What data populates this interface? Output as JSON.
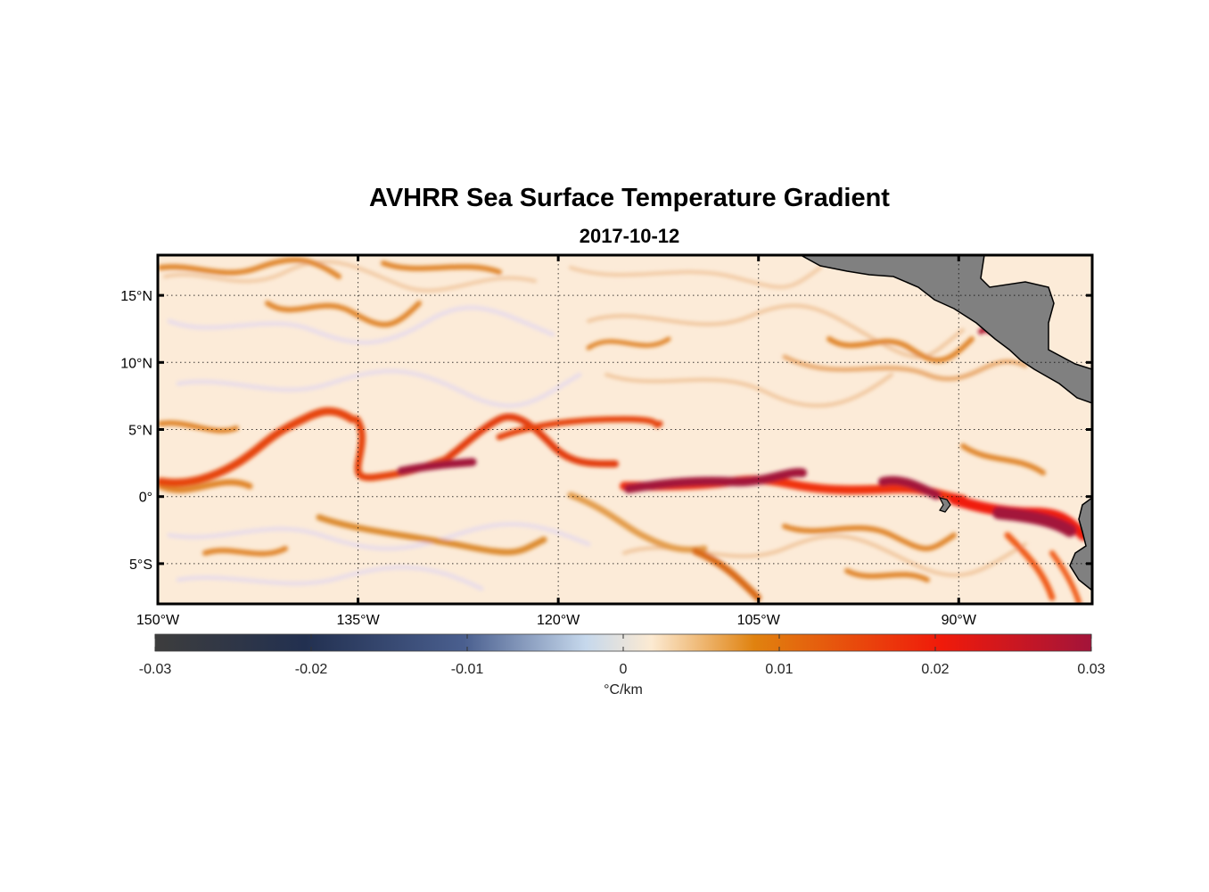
{
  "title": "AVHRR Sea Surface Temperature Gradient",
  "subtitle": "2017-10-12",
  "map": {
    "lon_range": [
      -150,
      -80
    ],
    "lat_range": [
      -8,
      18
    ],
    "lon_ticks": [
      {
        "value": -150,
        "label": "150°W"
      },
      {
        "value": -135,
        "label": "135°W"
      },
      {
        "value": -120,
        "label": "120°W"
      },
      {
        "value": -105,
        "label": "105°W"
      },
      {
        "value": -90,
        "label": "90°W"
      }
    ],
    "lat_ticks": [
      {
        "value": 15,
        "label": "15°N"
      },
      {
        "value": 10,
        "label": "10°N"
      },
      {
        "value": 5,
        "label": "5°N"
      },
      {
        "value": 0,
        "label": "0°"
      },
      {
        "value": -5,
        "label": "5°S"
      }
    ],
    "grid": "dotted",
    "land_color": "#808080",
    "ocean_background": "#fcebd8"
  },
  "colorbar": {
    "units": "°C/km",
    "range": [
      -0.03,
      0.03
    ],
    "ticks": [
      "-0.03",
      "-0.02",
      "-0.01",
      "0",
      "0.01",
      "0.02",
      "0.03"
    ],
    "colors": [
      "#3d3d3d",
      "#223050",
      "#4a5f8f",
      "#c6d8ec",
      "#fcead2",
      "#e0820f",
      "#f01a0a",
      "#a3143a"
    ]
  }
}
